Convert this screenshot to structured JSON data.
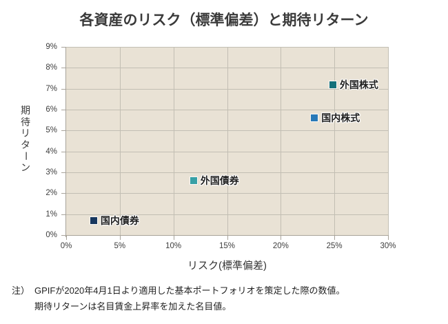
{
  "page": {
    "title": "各資産のリスク（標準偏差）と期待リターン",
    "note_prefix": "注）",
    "note_lines": [
      "GPIFが2020年4月1日より適用した基本ポートフォリオを策定した際の数値。",
      "期待リターンは名目賃金上昇率を加えた名目値。"
    ]
  },
  "chart_data": {
    "type": "scatter",
    "title": "各資産のリスク（標準偏差）と期待リターン",
    "xlabel": "リスク(標準偏差)",
    "ylabel": "期待リターン",
    "xlim": [
      0,
      30
    ],
    "ylim": [
      0,
      9
    ],
    "x_ticks": [
      0,
      5,
      10,
      15,
      20,
      25,
      30
    ],
    "y_ticks": [
      0,
      1,
      2,
      3,
      4,
      5,
      6,
      7,
      8,
      9
    ],
    "tick_suffix": "%",
    "grid": true,
    "legend": "none",
    "plot_bg_color": "#e9e2d5",
    "grid_color": "#c2beb3",
    "axis_color": "#a7a299",
    "points": [
      {
        "id": "domestic-bonds",
        "label": "国内債券",
        "x": 2.56,
        "y": 0.7,
        "color": "#17375e"
      },
      {
        "id": "foreign-bonds",
        "label": "外国債券",
        "x": 11.87,
        "y": 2.6,
        "color": "#38a0a6"
      },
      {
        "id": "domestic-stocks",
        "label": "国内株式",
        "x": 23.14,
        "y": 5.6,
        "color": "#2879b8"
      },
      {
        "id": "foreign-stocks",
        "label": "外国株式",
        "x": 24.85,
        "y": 7.2,
        "color": "#14707a"
      }
    ]
  }
}
